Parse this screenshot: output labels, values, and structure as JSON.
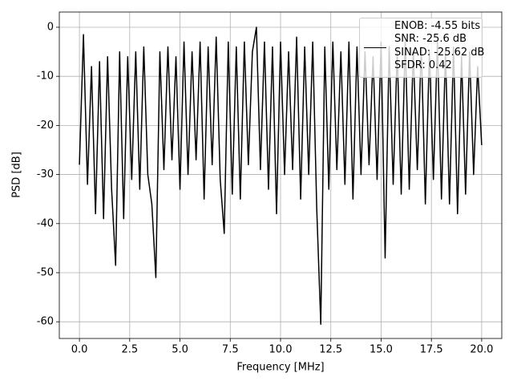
{
  "chart_data": {
    "type": "line",
    "xlabel": "Frequency [MHz]",
    "ylabel": "PSD [dB]",
    "x": [
      0.0,
      0.2,
      0.4,
      0.6,
      0.8,
      1.0,
      1.2,
      1.4,
      1.6,
      1.8,
      2.0,
      2.2,
      2.4,
      2.6,
      2.8,
      3.0,
      3.2,
      3.4,
      3.6,
      3.8,
      4.0,
      4.2,
      4.4,
      4.6,
      4.8,
      5.0,
      5.2,
      5.4,
      5.6,
      5.8,
      6.0,
      6.2,
      6.4,
      6.6,
      6.8,
      7.0,
      7.2,
      7.4,
      7.6,
      7.8,
      8.0,
      8.2,
      8.4,
      8.6,
      8.8,
      9.0,
      9.2,
      9.4,
      9.6,
      9.8,
      10.0,
      10.2,
      10.4,
      10.6,
      10.8,
      11.0,
      11.2,
      11.4,
      11.6,
      11.8,
      12.0,
      12.2,
      12.4,
      12.6,
      12.8,
      13.0,
      13.2,
      13.4,
      13.6,
      13.8,
      14.0,
      14.2,
      14.4,
      14.6,
      14.8,
      15.0,
      15.2,
      15.4,
      15.6,
      15.8,
      16.0,
      16.2,
      16.4,
      16.6,
      16.8,
      17.0,
      17.2,
      17.4,
      17.6,
      17.8,
      18.0,
      18.2,
      18.4,
      18.6,
      18.8,
      19.0,
      19.2,
      19.4,
      19.6,
      19.8,
      20.0
    ],
    "series": [
      {
        "name": "ENOB: -4.55 bits\nSNR: -25.6 dB\nSINAD: -25.62 dB\nSFDR: 0.42",
        "color": "#000000",
        "values": [
          -28,
          -1.5,
          -32,
          -8,
          -38,
          -7,
          -39,
          -6,
          -33,
          -48.5,
          -5,
          -39,
          -6,
          -31,
          -5,
          -33,
          -4,
          -30,
          -36,
          -51,
          -5,
          -29,
          -4,
          -27,
          -6,
          -33,
          -3,
          -30,
          -5,
          -27,
          -3,
          -35,
          -4,
          -28,
          -2,
          -31,
          -42,
          -3,
          -34,
          -4,
          -35,
          -3,
          -28,
          -5,
          0,
          -29,
          -3,
          -33,
          -4,
          -38,
          -3,
          -30,
          -5,
          -29,
          -2,
          -35,
          -4,
          -30,
          -3,
          -37,
          -60.5,
          -4,
          -33,
          -3,
          -29,
          -5,
          -32,
          -3,
          -35,
          -4,
          -30,
          -5,
          -28,
          -6,
          -31,
          -3,
          -47,
          -4,
          -32,
          -5,
          -34,
          -3,
          -33,
          -5,
          -29,
          -4,
          -36,
          -5,
          -31,
          -3,
          -35,
          -5,
          -36,
          -4,
          -38,
          -6,
          -34,
          -5,
          -30,
          -8,
          -24
        ]
      }
    ],
    "xlim": [
      -1.0,
      21.0
    ],
    "ylim": [
      -63.4,
      3.1
    ],
    "xticks": [
      {
        "value": 0,
        "label": "0.0"
      },
      2.5,
      {
        "value": 5,
        "label": "5.0"
      },
      7.5,
      {
        "value": 10,
        "label": "10.0"
      },
      12.5,
      {
        "value": 15,
        "label": "15.0"
      },
      17.5,
      {
        "value": 20,
        "label": "20.0"
      }
    ],
    "yticks": [
      0,
      -10,
      -20,
      -30,
      -40,
      -50,
      -60
    ],
    "grid": true,
    "legend": "upper right"
  }
}
